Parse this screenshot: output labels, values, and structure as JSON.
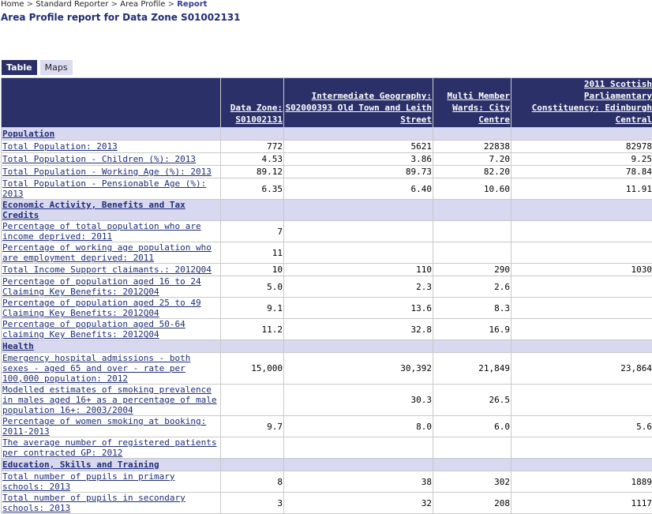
{
  "breadcrumb": {
    "items": [
      "Home",
      "Standard Reporter",
      "Area Profile"
    ],
    "current": "Report",
    "separator": ">"
  },
  "title": "Area Profile report for Data Zone S01002131",
  "tabs": [
    {
      "label": "Table",
      "active": true
    },
    {
      "label": "Maps",
      "active": false
    }
  ],
  "table": {
    "columns": [
      "Data Zone: S01002131",
      "Intermediate Geography: S02000393 Old Town and Leith Street",
      "Multi Member Wards: City Centre",
      "2011 Scottish Parliamentary Constituency: Edinburgh Central"
    ],
    "rows": [
      {
        "section": true,
        "label": "Population"
      },
      {
        "label": "Total Population: 2013",
        "values": [
          "772",
          "5621",
          "22838",
          "82978"
        ]
      },
      {
        "label": "Total Population - Children (%): 2013",
        "values": [
          "4.53",
          "3.86",
          "7.20",
          "9.25"
        ]
      },
      {
        "label": "Total Population - Working Age (%): 2013",
        "values": [
          "89.12",
          "89.73",
          "82.20",
          "78.84"
        ]
      },
      {
        "label": "Total Population - Pensionable Age (%): 2013",
        "values": [
          "6.35",
          "6.40",
          "10.60",
          "11.91"
        ]
      },
      {
        "section": true,
        "label": "Economic Activity, Benefits and Tax Credits"
      },
      {
        "label": "Percentage of total population who are income deprived: 2011",
        "values": [
          "7",
          "",
          "",
          ""
        ]
      },
      {
        "label": "Percentage of working age population who are employment deprived: 2011",
        "values": [
          "11",
          "",
          "",
          ""
        ]
      },
      {
        "label": "Total Income Support claimants.: 2012Q04",
        "values": [
          "10",
          "110",
          "290",
          "1030"
        ]
      },
      {
        "label": "Percentage of population aged 16 to 24 Claiming Key Benefits: 2012Q04",
        "values": [
          "5.0",
          "2.3",
          "2.6",
          ""
        ]
      },
      {
        "label": "Percentage of population aged 25 to 49 Claiming Key Benefits: 2012Q04",
        "values": [
          "9.1",
          "13.6",
          "8.3",
          ""
        ]
      },
      {
        "label": "Percentage of population aged 50-64 claiming Key Benefits: 2012Q04",
        "values": [
          "11.2",
          "32.8",
          "16.9",
          ""
        ]
      },
      {
        "section": true,
        "label": "Health"
      },
      {
        "label": "Emergency hospital admissions - both sexes - aged 65 and over - rate per 100,000 population: 2012",
        "values": [
          "15,000",
          "30,392",
          "21,849",
          "23,864"
        ]
      },
      {
        "label": "Modelled estimates of smoking prevalence in males aged 16+ as a percentage of male population 16+: 2003/2004",
        "values": [
          "",
          "30.3",
          "26.5",
          ""
        ]
      },
      {
        "label": "Percentage of women smoking at booking: 2011-2013",
        "values": [
          "9.7",
          "8.0",
          "6.0",
          "5.6"
        ]
      },
      {
        "label": "The average number of registered patients per contracted GP: 2012",
        "values": [
          "",
          "",
          "",
          ""
        ]
      },
      {
        "section": true,
        "label": "Education, Skills and Training"
      },
      {
        "label": "Total number of pupils in primary schools: 2013",
        "values": [
          "8",
          "38",
          "302",
          "1889"
        ]
      },
      {
        "label": "Total number of pupils in secondary schools: 2013",
        "values": [
          "3",
          "32",
          "208",
          "1117"
        ]
      }
    ]
  }
}
